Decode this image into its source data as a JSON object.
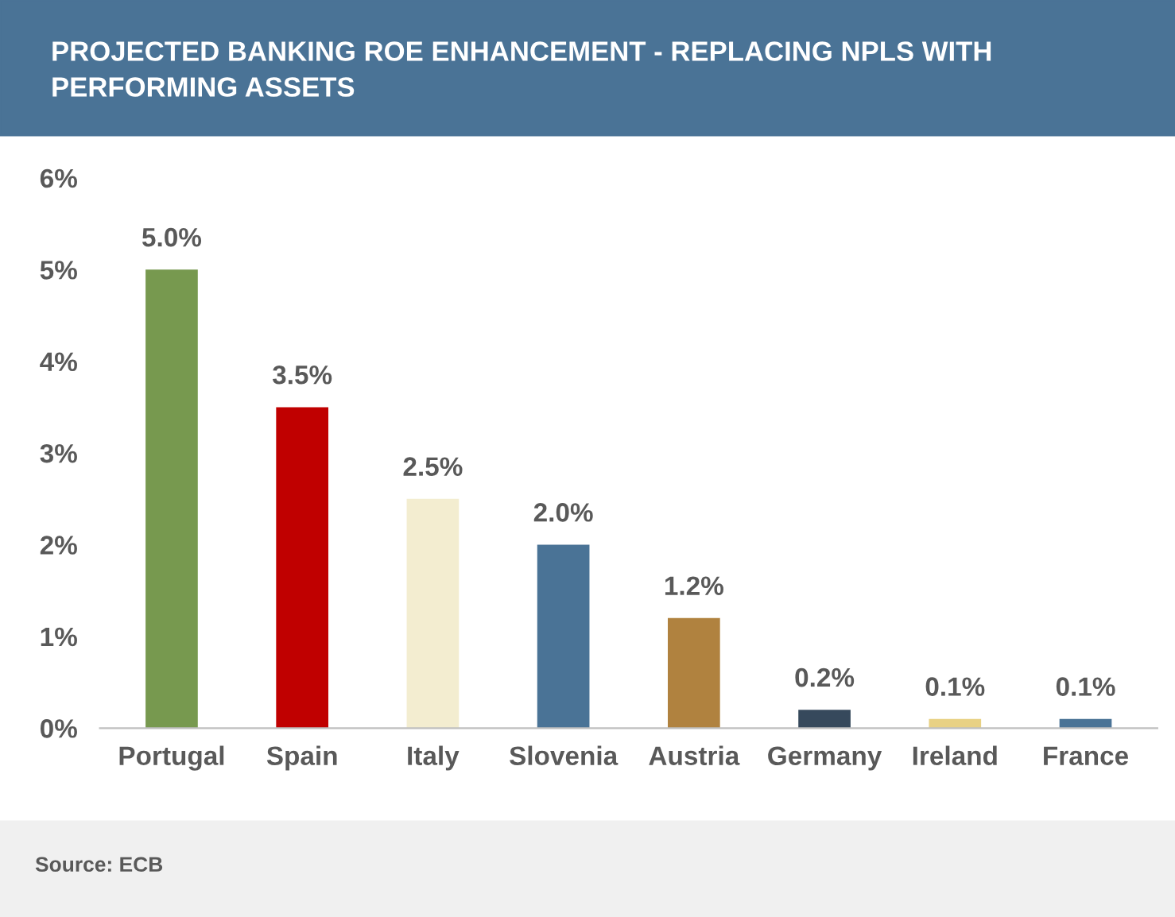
{
  "chart_data": {
    "type": "bar",
    "title": "PROJECTED BANKING ROE ENHANCEMENT - REPLACING NPLS WITH PERFORMING ASSETS",
    "categories": [
      "Portugal",
      "Spain",
      "Italy",
      "Slovenia",
      "Austria",
      "Germany",
      "Ireland",
      "France"
    ],
    "values": [
      5.0,
      3.5,
      2.5,
      2.0,
      1.2,
      0.2,
      0.1,
      0.1
    ],
    "value_labels": [
      "5.0%",
      "3.5%",
      "2.5%",
      "2.0%",
      "1.2%",
      "0.2%",
      "0.1%",
      "0.1%"
    ],
    "colors": [
      "#77994f",
      "#c00000",
      "#f3edd0",
      "#4a7396",
      "#b0823f",
      "#36495c",
      "#e8d184",
      "#4a7396"
    ],
    "ylim": [
      0,
      6
    ],
    "yticks": [
      {
        "value": 0,
        "label": "0%"
      },
      {
        "value": 1,
        "label": "1%"
      },
      {
        "value": 2,
        "label": "2%"
      },
      {
        "value": 3,
        "label": "3%"
      },
      {
        "value": 4,
        "label": "4%"
      },
      {
        "value": 5,
        "label": "5%"
      },
      {
        "value": 6,
        "label": "6%"
      }
    ],
    "grid": false,
    "legend": false,
    "annotations": [
      "Source: ECB"
    ]
  }
}
